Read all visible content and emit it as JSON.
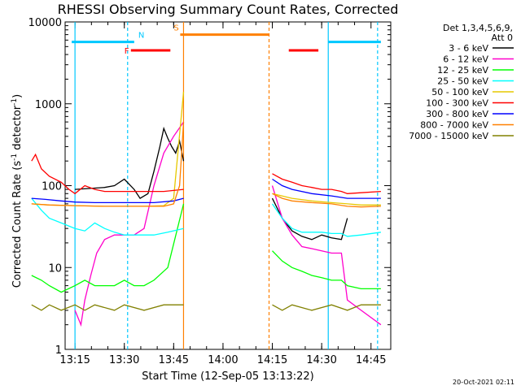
{
  "chart_data": {
    "type": "line",
    "title": "RHESSI Observing Summary Count Rates, Corrected",
    "xlabel": "Start Time (12-Sep-05 13:13:22)",
    "ylabel_main": "Corrected Count Rate (s",
    "ylabel_sup1": "-1",
    "ylabel_mid": " detector",
    "ylabel_sup2": "-1",
    "ylabel_end": ")",
    "y_scale": "log",
    "ylim": [
      1,
      10000
    ],
    "xlim_minutes": [
      13.2,
      14.85
    ],
    "x_ticks": [
      "13:15",
      "13:30",
      "13:45",
      "14:00",
      "14:15",
      "14:30",
      "14:45"
    ],
    "y_ticks": [
      "1",
      "10",
      "100",
      "1000",
      "10000"
    ],
    "legend_header": [
      "Det 1,3,4,5,6,9,",
      "Att 0"
    ],
    "timestamp": "20-Oct-2021 02:11",
    "flags": [
      {
        "label": "N",
        "color": "#00c8ff",
        "start": "13:14",
        "end": "13:33",
        "level": 5700
      },
      {
        "label": "F",
        "color": "#ff0000",
        "start": "13:32",
        "end": "13:44",
        "level": 4500
      },
      {
        "label": "S",
        "color": "#ff8000",
        "start": "13:47",
        "end": "14:14",
        "level": 7000
      },
      {
        "label": "",
        "color": "#ff0000",
        "start": "14:20",
        "end": "14:29",
        "level": 4500
      },
      {
        "label": "",
        "color": "#00c8ff",
        "start": "14:32",
        "end": "14:48",
        "level": 5700
      }
    ],
    "vlines": [
      {
        "time": "13:15",
        "color": "#00c8ff",
        "style": "solid"
      },
      {
        "time": "13:31",
        "color": "#00c8ff",
        "style": "dashed"
      },
      {
        "time": "13:48",
        "color": "#ff8000",
        "style": "solid"
      },
      {
        "time": "14:14",
        "color": "#ff8000",
        "style": "dashed"
      },
      {
        "time": "14:32",
        "color": "#00c8ff",
        "style": "solid"
      },
      {
        "time": "14:47",
        "color": "#00c8ff",
        "style": "dashed"
      }
    ],
    "series": [
      {
        "name": "3 - 6 keV",
        "color": "#000000",
        "seg1": [
          [
            13.25,
            90
          ],
          [
            13.4,
            95
          ],
          [
            13.45,
            100
          ],
          [
            13.5,
            120
          ],
          [
            13.55,
            90
          ],
          [
            13.58,
            70
          ],
          [
            13.62,
            80
          ],
          [
            13.65,
            150
          ],
          [
            13.68,
            300
          ],
          [
            13.7,
            500
          ],
          [
            13.72,
            380
          ],
          [
            13.74,
            300
          ],
          [
            13.76,
            250
          ],
          [
            13.78,
            350
          ],
          [
            13.8,
            200
          ]
        ],
        "seg2": [
          [
            14.25,
            70
          ],
          [
            14.3,
            40
          ],
          [
            14.35,
            28
          ],
          [
            14.4,
            24
          ],
          [
            14.45,
            22
          ],
          [
            14.5,
            25
          ],
          [
            14.55,
            23
          ],
          [
            14.6,
            22
          ],
          [
            14.63,
            40
          ]
        ]
      },
      {
        "name": "6 - 12 keV",
        "color": "#ff00cc",
        "seg1": [
          [
            13.25,
            3
          ],
          [
            13.28,
            2
          ],
          [
            13.3,
            4
          ],
          [
            13.33,
            8
          ],
          [
            13.36,
            15
          ],
          [
            13.4,
            22
          ],
          [
            13.45,
            25
          ],
          [
            13.5,
            25
          ],
          [
            13.55,
            25
          ],
          [
            13.6,
            30
          ],
          [
            13.65,
            100
          ],
          [
            13.7,
            250
          ],
          [
            13.75,
            400
          ],
          [
            13.8,
            600
          ]
        ],
        "seg2": [
          [
            14.25,
            100
          ],
          [
            14.3,
            40
          ],
          [
            14.35,
            25
          ],
          [
            14.4,
            18
          ],
          [
            14.45,
            17
          ],
          [
            14.5,
            16
          ],
          [
            14.55,
            15
          ],
          [
            14.6,
            15
          ],
          [
            14.63,
            4
          ],
          [
            14.7,
            3
          ],
          [
            14.8,
            2
          ]
        ]
      },
      {
        "name": "12 - 25 keV",
        "color": "#00ff00",
        "seg1": [
          [
            13.03,
            8
          ],
          [
            13.08,
            7
          ],
          [
            13.12,
            6
          ],
          [
            13.18,
            5
          ],
          [
            13.25,
            6
          ],
          [
            13.3,
            7
          ],
          [
            13.35,
            6
          ],
          [
            13.4,
            6
          ],
          [
            13.45,
            6
          ],
          [
            13.5,
            7
          ],
          [
            13.55,
            6
          ],
          [
            13.6,
            6
          ],
          [
            13.65,
            7
          ],
          [
            13.72,
            10
          ],
          [
            13.8,
            60
          ]
        ],
        "seg2": [
          [
            14.25,
            16
          ],
          [
            14.3,
            12
          ],
          [
            14.35,
            10
          ],
          [
            14.4,
            9
          ],
          [
            14.45,
            8
          ],
          [
            14.5,
            7.5
          ],
          [
            14.55,
            7
          ],
          [
            14.6,
            7
          ],
          [
            14.63,
            6
          ],
          [
            14.7,
            5.5
          ],
          [
            14.8,
            5.5
          ]
        ]
      },
      {
        "name": "25 - 50 keV",
        "color": "#00ffff",
        "seg1": [
          [
            13.03,
            70
          ],
          [
            13.08,
            50
          ],
          [
            13.12,
            40
          ],
          [
            13.18,
            35
          ],
          [
            13.25,
            30
          ],
          [
            13.3,
            28
          ],
          [
            13.35,
            35
          ],
          [
            13.4,
            30
          ],
          [
            13.45,
            27
          ],
          [
            13.5,
            25
          ],
          [
            13.55,
            25
          ],
          [
            13.6,
            25
          ],
          [
            13.65,
            25
          ],
          [
            13.72,
            27
          ],
          [
            13.8,
            30
          ]
        ],
        "seg2": [
          [
            14.25,
            60
          ],
          [
            14.3,
            40
          ],
          [
            14.35,
            30
          ],
          [
            14.4,
            27
          ],
          [
            14.45,
            27
          ],
          [
            14.5,
            27
          ],
          [
            14.55,
            26
          ],
          [
            14.6,
            26
          ],
          [
            14.63,
            24
          ],
          [
            14.7,
            25
          ],
          [
            14.8,
            27
          ]
        ]
      },
      {
        "name": "50 - 100 keV",
        "color": "#e6c800",
        "seg1": [
          [
            13.03,
            60
          ],
          [
            13.12,
            58
          ],
          [
            13.25,
            57
          ],
          [
            13.4,
            56
          ],
          [
            13.5,
            56
          ],
          [
            13.6,
            56
          ],
          [
            13.7,
            57
          ],
          [
            13.75,
            70
          ],
          [
            13.8,
            1400
          ]
        ],
        "seg2": [
          [
            14.25,
            80
          ],
          [
            14.35,
            70
          ],
          [
            14.45,
            65
          ],
          [
            14.55,
            62
          ],
          [
            14.63,
            60
          ],
          [
            14.7,
            58
          ],
          [
            14.8,
            58
          ]
        ]
      },
      {
        "name": "100 - 300 keV",
        "color": "#ff0000",
        "seg1": [
          [
            13.03,
            200
          ],
          [
            13.05,
            240
          ],
          [
            13.08,
            160
          ],
          [
            13.12,
            130
          ],
          [
            13.18,
            110
          ],
          [
            13.22,
            90
          ],
          [
            13.25,
            80
          ],
          [
            13.3,
            100
          ],
          [
            13.35,
            90
          ],
          [
            13.4,
            85
          ],
          [
            13.5,
            85
          ],
          [
            13.6,
            85
          ],
          [
            13.7,
            85
          ],
          [
            13.8,
            90
          ]
        ],
        "seg2": [
          [
            14.25,
            140
          ],
          [
            14.3,
            120
          ],
          [
            14.35,
            110
          ],
          [
            14.4,
            100
          ],
          [
            14.45,
            95
          ],
          [
            14.5,
            90
          ],
          [
            14.55,
            90
          ],
          [
            14.6,
            85
          ],
          [
            14.63,
            80
          ],
          [
            14.7,
            82
          ],
          [
            14.8,
            85
          ]
        ]
      },
      {
        "name": "300 - 800 keV",
        "color": "#0000ff",
        "seg1": [
          [
            13.03,
            70
          ],
          [
            13.1,
            68
          ],
          [
            13.18,
            65
          ],
          [
            13.25,
            63
          ],
          [
            13.35,
            62
          ],
          [
            13.45,
            62
          ],
          [
            13.55,
            62
          ],
          [
            13.65,
            62
          ],
          [
            13.75,
            65
          ],
          [
            13.8,
            70
          ]
        ],
        "seg2": [
          [
            14.25,
            120
          ],
          [
            14.3,
            100
          ],
          [
            14.35,
            90
          ],
          [
            14.45,
            80
          ],
          [
            14.55,
            75
          ],
          [
            14.63,
            70
          ],
          [
            14.7,
            70
          ],
          [
            14.8,
            70
          ]
        ]
      },
      {
        "name": "800 - 7000 keV",
        "color": "#ff8000",
        "seg1": [
          [
            13.03,
            60
          ],
          [
            13.12,
            58
          ],
          [
            13.25,
            57
          ],
          [
            13.4,
            56
          ],
          [
            13.5,
            56
          ],
          [
            13.6,
            56
          ],
          [
            13.7,
            56
          ],
          [
            13.75,
            60
          ],
          [
            13.78,
            100
          ],
          [
            13.8,
            600
          ]
        ],
        "seg2": [
          [
            14.25,
            80
          ],
          [
            14.3,
            70
          ],
          [
            14.35,
            65
          ],
          [
            14.45,
            62
          ],
          [
            14.55,
            60
          ],
          [
            14.63,
            56
          ],
          [
            14.7,
            55
          ],
          [
            14.8,
            56
          ]
        ]
      },
      {
        "name": "7000 - 15000 keV",
        "color": "#808000",
        "seg1": [
          [
            13.03,
            3.5
          ],
          [
            13.08,
            3
          ],
          [
            13.12,
            3.5
          ],
          [
            13.18,
            3
          ],
          [
            13.25,
            3.5
          ],
          [
            13.3,
            3
          ],
          [
            13.35,
            3.5
          ],
          [
            13.45,
            3
          ],
          [
            13.5,
            3.5
          ],
          [
            13.6,
            3
          ],
          [
            13.7,
            3.5
          ],
          [
            13.8,
            3.5
          ]
        ],
        "seg2": [
          [
            14.25,
            3.5
          ],
          [
            14.3,
            3
          ],
          [
            14.35,
            3.5
          ],
          [
            14.45,
            3
          ],
          [
            14.55,
            3.5
          ],
          [
            14.63,
            3
          ],
          [
            14.7,
            3.5
          ],
          [
            14.8,
            3.5
          ]
        ]
      }
    ]
  }
}
